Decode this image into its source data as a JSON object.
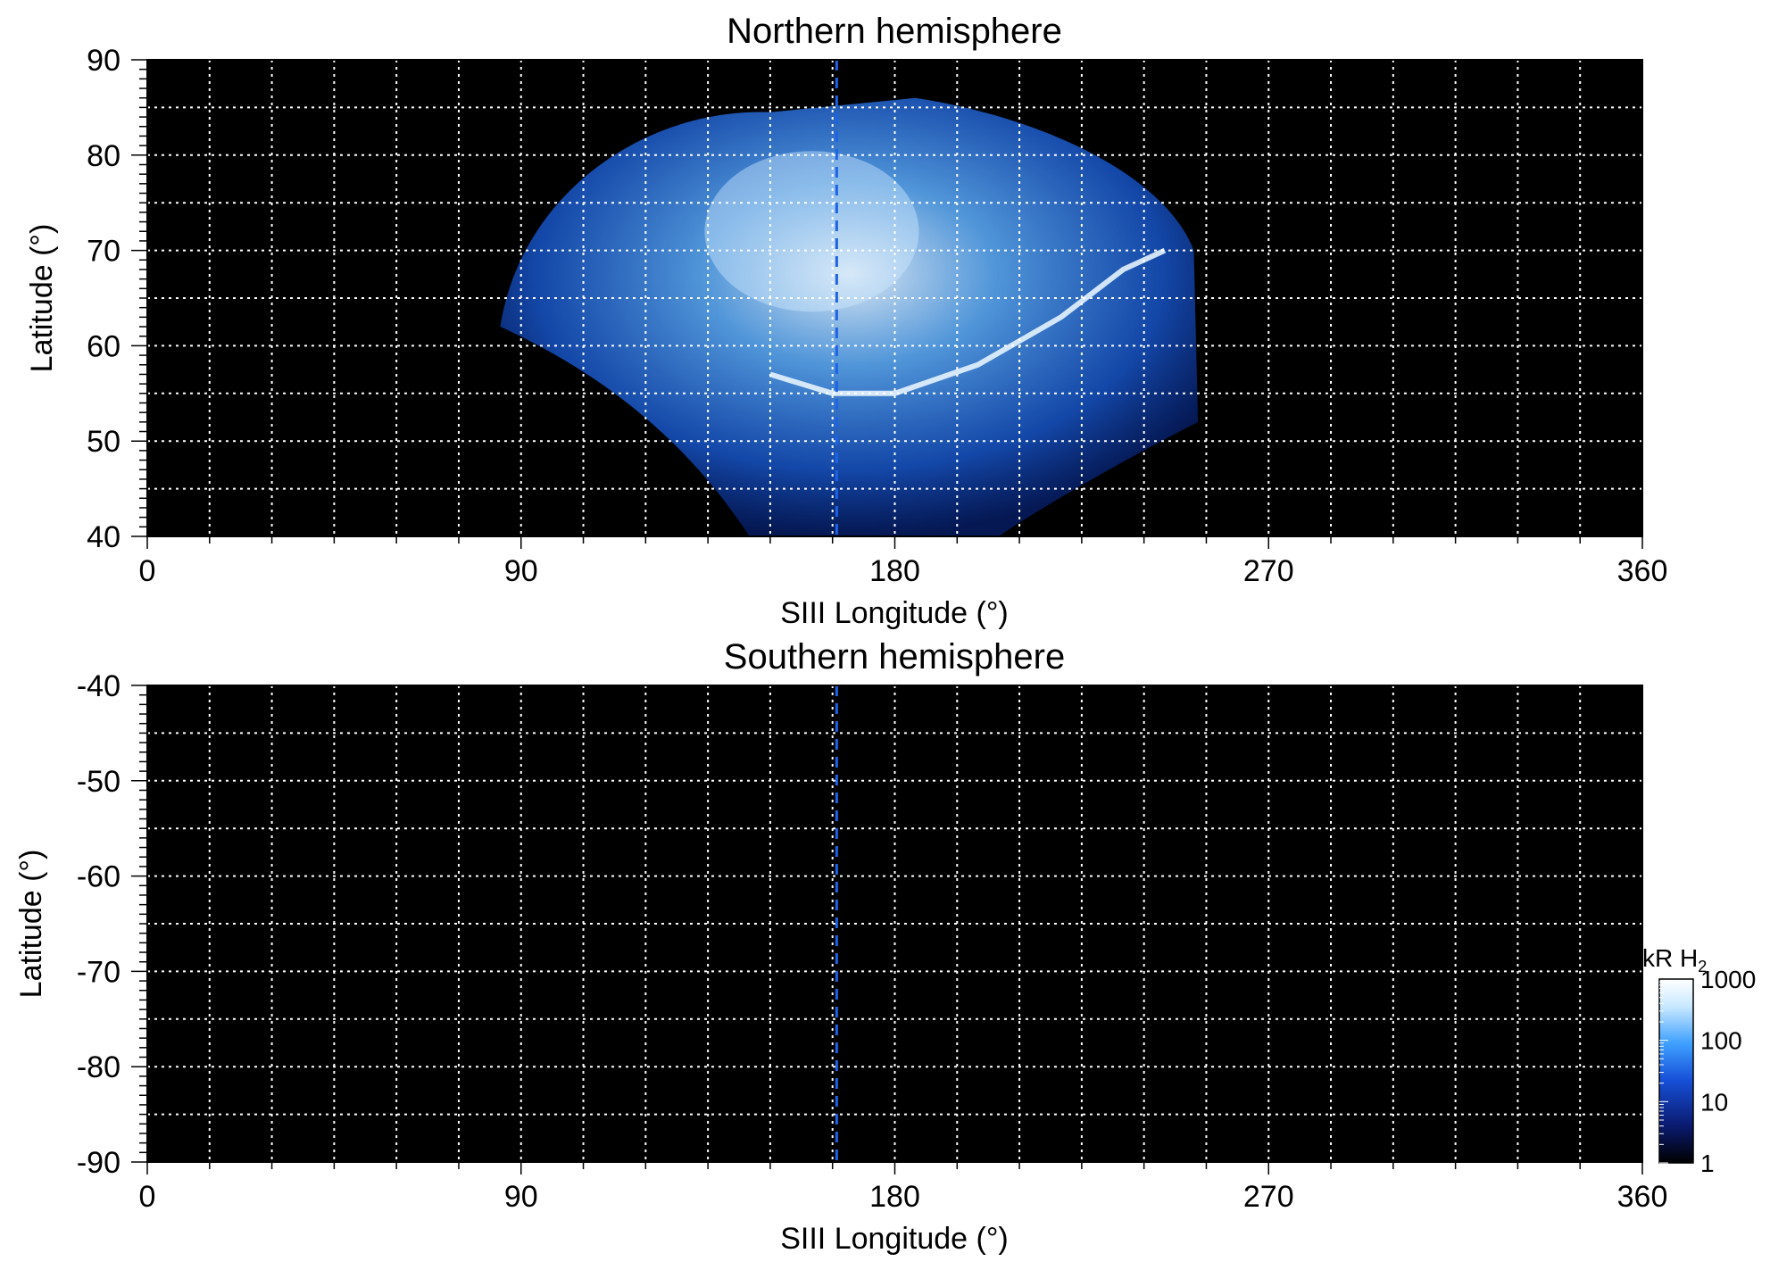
{
  "chart_data": [
    {
      "type": "heatmap",
      "title": "Northern hemisphere",
      "xlabel": "SIII Longitude (°)",
      "ylabel": "Latitude (°)",
      "xlim": [
        0,
        360
      ],
      "ylim": [
        40,
        90
      ],
      "xticks": [
        0,
        90,
        180,
        270,
        360
      ],
      "xtick_labels": [
        "0",
        "90",
        "180",
        "270",
        "360"
      ],
      "yticks": [
        40,
        50,
        60,
        70,
        80,
        90
      ],
      "ytick_labels": [
        "40",
        "50",
        "60",
        "70",
        "80",
        "90"
      ],
      "grid": true,
      "grid_x_step": 15,
      "grid_y_step": 5,
      "reference_longitude": 166,
      "coverage": {
        "longitude_range": [
          85,
          252
        ],
        "latitude_range": [
          40,
          86
        ]
      },
      "main_oval": {
        "points": [
          [
            150,
            57
          ],
          [
            165,
            55
          ],
          [
            180,
            55
          ],
          [
            200,
            58
          ],
          [
            220,
            63
          ],
          [
            235,
            68
          ],
          [
            245,
            70
          ]
        ]
      }
    },
    {
      "type": "heatmap",
      "title": "Southern hemisphere",
      "xlabel": "SIII Longitude (°)",
      "ylabel": "Latitude (°)",
      "xlim": [
        0,
        360
      ],
      "ylim": [
        -90,
        -40
      ],
      "xticks": [
        0,
        90,
        180,
        270,
        360
      ],
      "xtick_labels": [
        "0",
        "90",
        "180",
        "270",
        "360"
      ],
      "yticks": [
        -40,
        -50,
        -60,
        -70,
        -80,
        -90
      ],
      "ytick_labels": [
        "-40",
        "-50",
        "-60",
        "-70",
        "-80",
        "-90"
      ],
      "grid": true,
      "grid_x_step": 15,
      "grid_y_step": 5,
      "reference_longitude": 166,
      "coverage": null
    }
  ],
  "colorbar": {
    "unit_label": "kR H",
    "unit_subscript": "2",
    "scale": "log",
    "range": [
      1,
      1000
    ],
    "ticks": [
      1,
      10,
      100,
      1000
    ],
    "tick_labels": [
      "1",
      "10",
      "100",
      "1000"
    ],
    "colors": [
      "#000000",
      "#0a1a6e",
      "#1750d8",
      "#3fa0ff",
      "#c8e8ff",
      "#ffffff"
    ]
  },
  "colors": {
    "background": "#000000",
    "grid": "#ffffff",
    "reference_line": "#1e63e6",
    "emission": "#2f8cff"
  }
}
